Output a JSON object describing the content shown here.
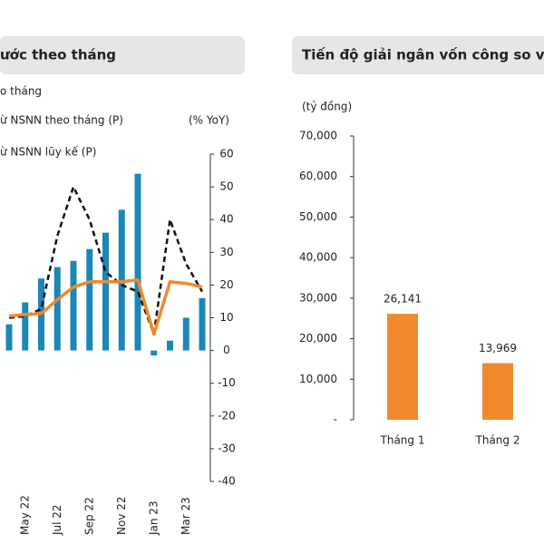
{
  "chart_data": [
    {
      "type": "bar",
      "title": "ước theo tháng",
      "y_label": "(% YoY)",
      "categories": [
        null,
        "May 22",
        null,
        "Jul 22",
        null,
        "Sep 22",
        null,
        "Nov 22",
        null,
        "Jan 23",
        null,
        "Mar 23",
        null
      ],
      "series": [
        {
          "name": "o tháng",
          "type": "bar",
          "color": "#1a87b8",
          "values": [
            8,
            14.7,
            22,
            25.5,
            27.4,
            31,
            36,
            43,
            54,
            -1.5,
            3,
            10,
            16
          ]
        },
        {
          "name": "ừ NSNN theo tháng (P)",
          "type": "line",
          "style": "dashed",
          "color": "#111111",
          "values": [
            10,
            10.5,
            12.7,
            35,
            50,
            40,
            24,
            20,
            18,
            5,
            40,
            26.5,
            18
          ]
        },
        {
          "name": "ừ NSNN lũy kế (P)",
          "type": "line",
          "style": "solid",
          "color": "#f0892c",
          "values": [
            10.5,
            11,
            11.3,
            15.5,
            19.4,
            21,
            21,
            21,
            21.6,
            5,
            21,
            20.5,
            19.4
          ]
        }
      ],
      "ylim": [
        -40,
        60
      ],
      "yticks": [
        -40,
        -30,
        -20,
        -10,
        0,
        10,
        20,
        30,
        40,
        50,
        60
      ]
    },
    {
      "type": "bar",
      "title": "Tiến độ giải ngân vốn công so vớ",
      "y_label": "(tỷ đồng)",
      "categories": [
        "Tháng 1",
        "Tháng 2"
      ],
      "values": [
        26141,
        13969
      ],
      "value_labels": [
        "26,141",
        "13,969"
      ],
      "color": "#f0892c",
      "ylim": [
        0,
        70000
      ],
      "yticks": [
        {
          "value": 0,
          "label": "-"
        },
        {
          "value": 10000,
          "label": "10,000"
        },
        {
          "value": 20000,
          "label": "20,000"
        },
        {
          "value": 30000,
          "label": "30,000"
        },
        {
          "value": 40000,
          "label": "40,000"
        },
        {
          "value": 50000,
          "label": "50,000"
        },
        {
          "value": 60000,
          "label": "60,000"
        },
        {
          "value": 70000,
          "label": "70,000"
        }
      ]
    }
  ]
}
